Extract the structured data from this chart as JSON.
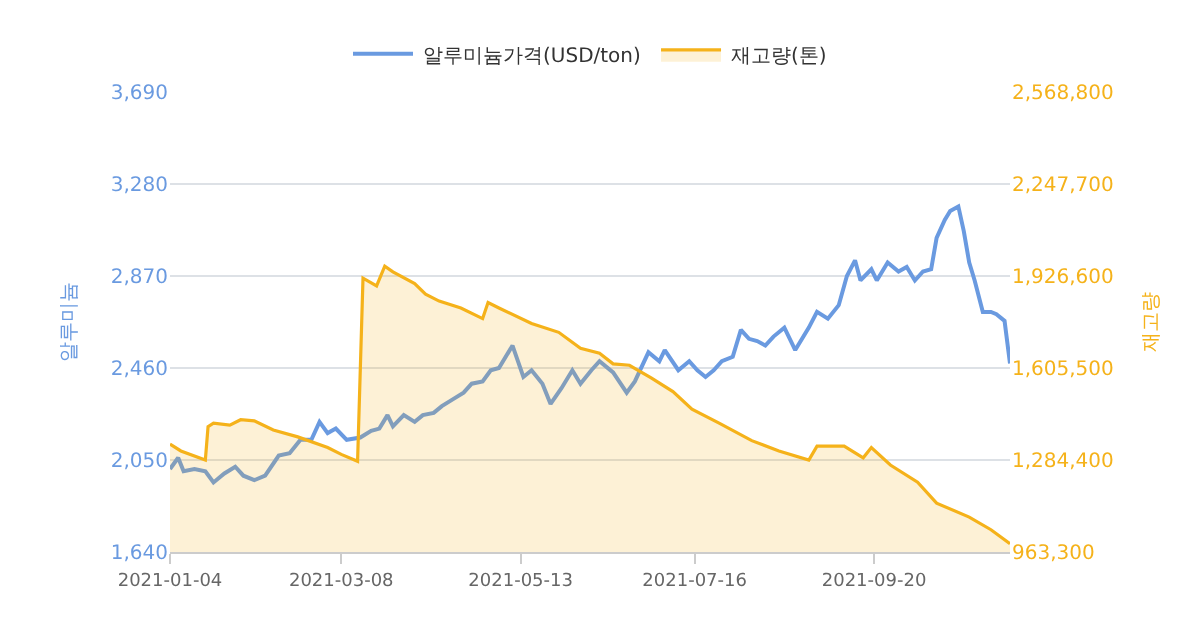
{
  "chart_data": {
    "type": "line",
    "ylabel": "알루미늄",
    "y2label": "재고량",
    "xlim": [
      "2021-01-04",
      "2021-11-09"
    ],
    "xticks": [
      "2021-01-04",
      "2021-03-08",
      "2021-05-13",
      "2021-07-16",
      "2021-09-20"
    ],
    "ylim": [
      1640,
      3690
    ],
    "yticks": [
      {
        "value": 1640,
        "label": "1,640"
      },
      {
        "value": 2050,
        "label": "2,050"
      },
      {
        "value": 2460,
        "label": "2,460"
      },
      {
        "value": 2870,
        "label": "2,870"
      },
      {
        "value": 3280,
        "label": "3,280"
      },
      {
        "value": 3690,
        "label": "3,690"
      }
    ],
    "y2lim": [
      963300,
      2568800
    ],
    "y2ticks": [
      {
        "value": 963300,
        "label": "963,300"
      },
      {
        "value": 1284400,
        "label": "1,284,400"
      },
      {
        "value": 1605500,
        "label": "1,605,500"
      },
      {
        "value": 1926600,
        "label": "1,926,600"
      },
      {
        "value": 2247700,
        "label": "2,247,700"
      },
      {
        "value": 2568800,
        "label": "2,568,800"
      }
    ],
    "grid": "y",
    "legend": "top",
    "marker": "none",
    "line_style": "solid",
    "series": [
      {
        "name": "알루미늄가격(USD/ton)",
        "color": "#6a9ae0",
        "x": [
          "2021-01-04",
          "2021-01-07",
          "2021-01-09",
          "2021-01-13",
          "2021-01-17",
          "2021-01-20",
          "2021-01-24",
          "2021-01-28",
          "2021-01-31",
          "2021-02-04",
          "2021-02-08",
          "2021-02-13",
          "2021-02-17",
          "2021-02-21",
          "2021-02-25",
          "2021-02-28",
          "2021-03-03",
          "2021-03-06",
          "2021-03-10",
          "2021-03-15",
          "2021-03-19",
          "2021-03-22",
          "2021-03-25",
          "2021-03-27",
          "2021-03-31",
          "2021-04-04",
          "2021-04-07",
          "2021-04-11",
          "2021-04-14",
          "2021-04-18",
          "2021-04-22",
          "2021-04-25",
          "2021-04-29",
          "2021-05-02",
          "2021-05-05",
          "2021-05-10",
          "2021-05-14",
          "2021-05-17",
          "2021-05-21",
          "2021-05-24",
          "2021-05-28",
          "2021-06-01",
          "2021-06-04",
          "2021-06-08",
          "2021-06-11",
          "2021-06-16",
          "2021-06-21",
          "2021-06-24",
          "2021-06-29",
          "2021-07-03",
          "2021-07-05",
          "2021-07-10",
          "2021-07-14",
          "2021-07-17",
          "2021-07-20",
          "2021-07-23",
          "2021-07-26",
          "2021-07-30",
          "2021-08-02",
          "2021-08-05",
          "2021-08-08",
          "2021-08-11",
          "2021-08-14",
          "2021-08-18",
          "2021-08-22",
          "2021-08-27",
          "2021-08-30",
          "2021-09-03",
          "2021-09-07",
          "2021-09-10",
          "2021-09-13",
          "2021-09-15",
          "2021-09-19",
          "2021-09-21",
          "2021-09-25",
          "2021-09-29",
          "2021-10-02",
          "2021-10-05",
          "2021-10-08",
          "2021-10-11",
          "2021-10-13",
          "2021-10-16",
          "2021-10-18",
          "2021-10-21",
          "2021-10-23",
          "2021-10-25",
          "2021-10-27",
          "2021-10-30",
          "2021-11-02",
          "2021-11-04",
          "2021-11-07",
          "2021-11-09"
        ],
        "values": [
          2010,
          2060,
          2000,
          2010,
          2000,
          1950,
          1990,
          2020,
          1980,
          1960,
          1980,
          2070,
          2080,
          2140,
          2140,
          2220,
          2170,
          2190,
          2140,
          2150,
          2180,
          2190,
          2250,
          2200,
          2250,
          2220,
          2250,
          2260,
          2290,
          2320,
          2350,
          2390,
          2400,
          2450,
          2460,
          2560,
          2420,
          2450,
          2390,
          2300,
          2370,
          2450,
          2390,
          2450,
          2490,
          2440,
          2350,
          2400,
          2530,
          2490,
          2540,
          2450,
          2490,
          2450,
          2420,
          2450,
          2490,
          2510,
          2630,
          2590,
          2580,
          2560,
          2600,
          2640,
          2540,
          2640,
          2710,
          2680,
          2740,
          2870,
          2940,
          2850,
          2900,
          2850,
          2930,
          2890,
          2910,
          2850,
          2890,
          2900,
          3040,
          3120,
          3160,
          3180,
          3070,
          2930,
          2850,
          2710,
          2710,
          2700,
          2670,
          2480
        ]
      },
      {
        "name": "재고량(톤)",
        "type": "area",
        "axis": "y2",
        "color": "#f5b21a",
        "x": [
          "2021-01-04",
          "2021-01-08",
          "2021-01-17",
          "2021-01-18",
          "2021-01-20",
          "2021-01-26",
          "2021-01-30",
          "2021-02-04",
          "2021-02-11",
          "2021-02-20",
          "2021-03-03",
          "2021-03-08",
          "2021-03-14",
          "2021-03-16",
          "2021-03-21",
          "2021-03-24",
          "2021-03-27",
          "2021-04-04",
          "2021-04-08",
          "2021-04-13",
          "2021-04-21",
          "2021-04-29",
          "2021-05-01",
          "2021-05-05",
          "2021-05-17",
          "2021-05-27",
          "2021-06-04",
          "2021-06-11",
          "2021-06-16",
          "2021-06-22",
          "2021-06-30",
          "2021-07-08",
          "2021-07-15",
          "2021-07-25",
          "2021-08-06",
          "2021-08-16",
          "2021-08-27",
          "2021-08-30",
          "2021-09-09",
          "2021-09-16",
          "2021-09-19",
          "2021-09-26",
          "2021-10-06",
          "2021-10-13",
          "2021-10-25",
          "2021-11-02",
          "2021-11-09"
        ],
        "values": [
          1340000,
          1316000,
          1284000,
          1401000,
          1413000,
          1406000,
          1425000,
          1421000,
          1389000,
          1365000,
          1328000,
          1304000,
          1280000,
          1919000,
          1892000,
          1961000,
          1941000,
          1900000,
          1863000,
          1839000,
          1815000,
          1778000,
          1834000,
          1815000,
          1761000,
          1730000,
          1674000,
          1657000,
          1620000,
          1615000,
          1571000,
          1523000,
          1462000,
          1413000,
          1352000,
          1316000,
          1284000,
          1333000,
          1333000,
          1292000,
          1328000,
          1267000,
          1207000,
          1134000,
          1085000,
          1041000,
          992000
        ]
      }
    ]
  }
}
